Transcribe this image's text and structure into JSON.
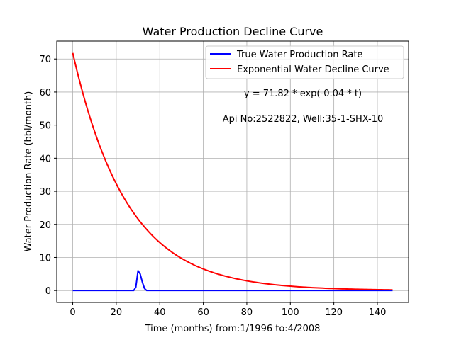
{
  "chart_data": {
    "type": "line",
    "title": "Water Production Decline Curve",
    "xlabel": "Time (months) from:1/1996 to:4/2008",
    "ylabel": "Water Production Rate (bbl/month)",
    "xlim": [
      -7.35,
      154.35
    ],
    "ylim": [
      -3.6,
      75.4
    ],
    "xticks": [
      0,
      20,
      40,
      60,
      80,
      100,
      120,
      140
    ],
    "yticks": [
      0,
      10,
      20,
      30,
      40,
      50,
      60,
      70
    ],
    "grid": true,
    "legend_position": "top-right",
    "annotations": [
      "y = 71.82 * exp(-0.04 * t)",
      "Api No:2522822, Well:35-1-SHX-10"
    ],
    "series": [
      {
        "name": "True Water Production Rate",
        "color": "#0000ff",
        "x": [
          0,
          28,
          29,
          30,
          31,
          32,
          33,
          34,
          147
        ],
        "y": [
          0,
          0,
          1,
          6,
          5,
          2.5,
          0.6,
          0,
          0
        ]
      },
      {
        "name": "Exponential Water Decline Curve",
        "color": "#ff0000",
        "model": {
          "a": 71.82,
          "b": 0.04
        },
        "x_range": [
          0,
          147
        ]
      }
    ]
  }
}
